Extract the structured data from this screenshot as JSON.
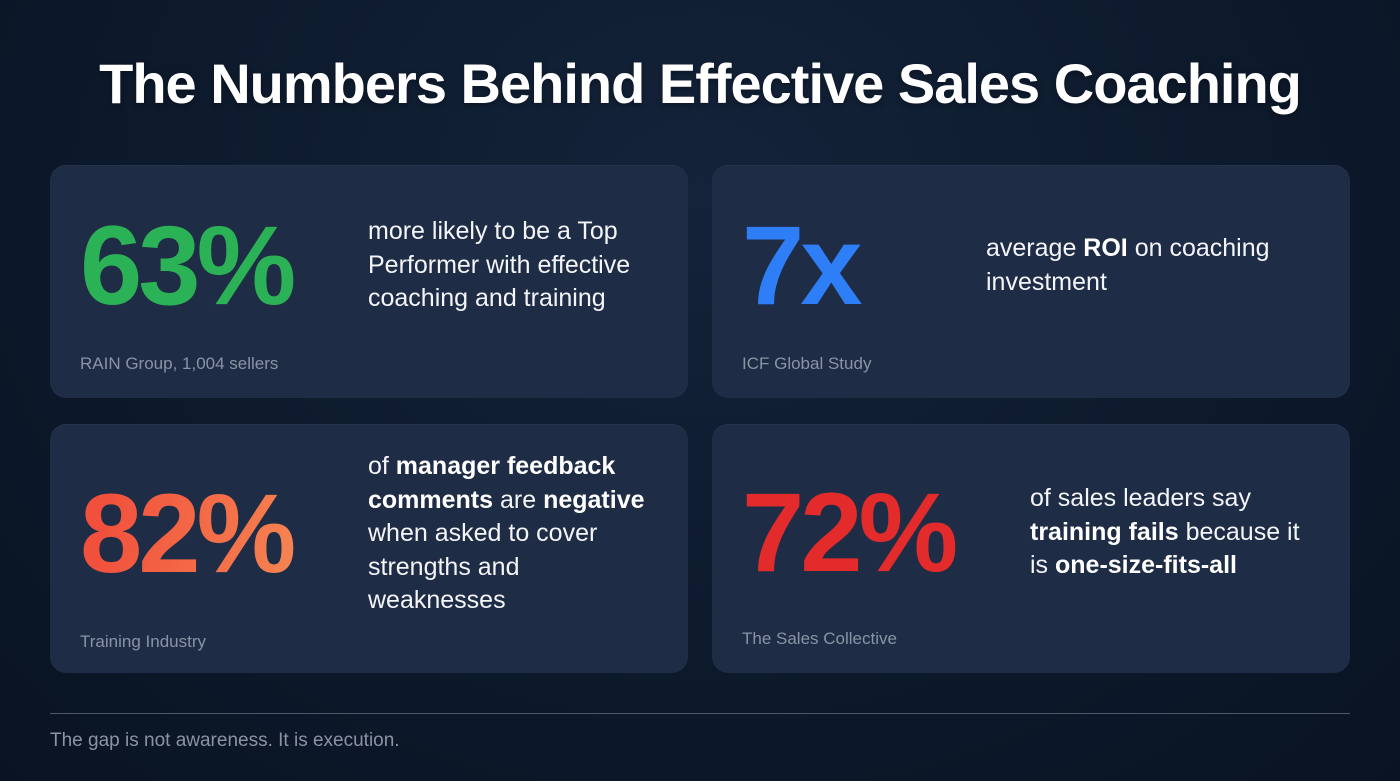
{
  "page": {
    "title": "The Numbers Behind Effective Sales Coaching",
    "footer_note": "The gap is not awareness. It is execution."
  },
  "theme": {
    "background": "#0d1a2c",
    "card_background": "#1f2c45",
    "green": "#2cb256",
    "blue": "#2d7ef7",
    "orange_gradient_start": "#f1503c",
    "orange_gradient_end": "#f68a54",
    "red": "#e32b2b",
    "text_primary": "#ffffff",
    "text_muted": "#8a93a6"
  },
  "cards": [
    {
      "stat": "63%",
      "description": [
        {
          "text": "more likely to be a Top Performer with effective coaching and training",
          "bold": false
        }
      ],
      "source": "RAIN Group, 1,004 sellers"
    },
    {
      "stat": "7x",
      "description": [
        {
          "text": "average ",
          "bold": false
        },
        {
          "text": "ROI",
          "bold": true
        },
        {
          "text": " on coaching investment",
          "bold": false
        }
      ],
      "source": "ICF Global Study"
    },
    {
      "stat": "82%",
      "description": [
        {
          "text": "of ",
          "bold": false
        },
        {
          "text": "manager feedback comments",
          "bold": true
        },
        {
          "text": " are ",
          "bold": false
        },
        {
          "text": "negative",
          "bold": true
        },
        {
          "text": " when asked to cover strengths and weaknesses",
          "bold": false
        }
      ],
      "source": "Training Industry"
    },
    {
      "stat": "72%",
      "description": [
        {
          "text": "of sales leaders say ",
          "bold": false
        },
        {
          "text": "training fails",
          "bold": true
        },
        {
          "text": " because it is ",
          "bold": false
        },
        {
          "text": "one-size-fits-all",
          "bold": true
        }
      ],
      "source": "The Sales Collective"
    }
  ]
}
